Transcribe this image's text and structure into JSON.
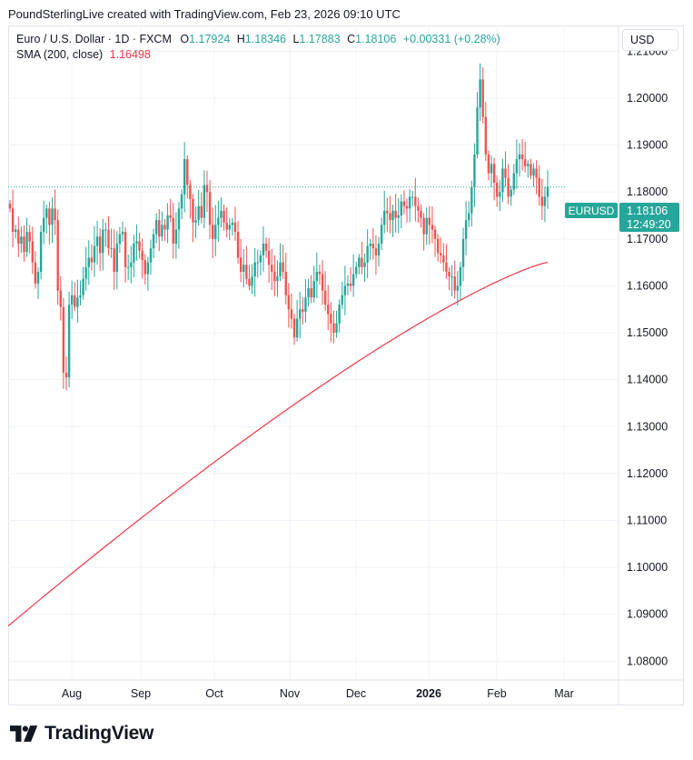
{
  "header": {
    "attribution": "PoundSterlingLive created with TradingView.com, Feb 23, 2026 09:10 UTC"
  },
  "legend": {
    "symbol": "Euro / U.S. Dollar · 1D · FXCM",
    "o_label": "O",
    "o_value": "1.17924",
    "h_label": "H",
    "h_value": "1.18346",
    "l_label": "L",
    "l_value": "1.17883",
    "c_label": "C",
    "c_value": "1.18106",
    "change": "+0.00331 (+0.28%)",
    "sma_label": "SMA (200, close)",
    "sma_value": "1.16498"
  },
  "currency_button": "USD",
  "price_tag": {
    "symbol": "EURUSD",
    "price": "1.18106",
    "countdown": "12:49:20"
  },
  "brand": {
    "name": "TradingView"
  },
  "colors": {
    "up": "#26a69a",
    "down": "#ef5350",
    "sma": "#f23645",
    "grid": "#f0f3fa",
    "tag": "#26a69a"
  },
  "chart_data": {
    "type": "candlestick",
    "y_ticks": [
      "1.21000",
      "1.20000",
      "1.19000",
      "1.18000",
      "1.17000",
      "1.16000",
      "1.15000",
      "1.14000",
      "1.13000",
      "1.12000",
      "1.11000",
      "1.10000",
      "1.09000",
      "1.08000"
    ],
    "ylim": [
      1.076,
      1.2155
    ],
    "x_ticks": [
      {
        "label": "Aug",
        "bold": false
      },
      {
        "label": "Sep",
        "bold": false
      },
      {
        "label": "Oct",
        "bold": false
      },
      {
        "label": "Nov",
        "bold": false
      },
      {
        "label": "Dec",
        "bold": false
      },
      {
        "label": "2026",
        "bold": true
      },
      {
        "label": "Feb",
        "bold": false
      },
      {
        "label": "Mar",
        "bold": false
      }
    ],
    "last_price": 1.18106,
    "grid": true,
    "series": [
      {
        "name": "EURUSD",
        "approx_daily_closes": [
          1.1765,
          1.1715,
          1.172,
          1.169,
          1.1705,
          1.1672,
          1.1715,
          1.1695,
          1.165,
          1.1605,
          1.163,
          1.1715,
          1.1745,
          1.1765,
          1.173,
          1.1765,
          1.174,
          1.159,
          1.1555,
          1.1415,
          1.1405,
          1.156,
          1.158,
          1.1555,
          1.1575,
          1.158,
          1.1615,
          1.164,
          1.166,
          1.165,
          1.1685,
          1.1705,
          1.167,
          1.172,
          1.172,
          1.168,
          1.168,
          1.163,
          1.169,
          1.171,
          1.1715,
          1.164,
          1.164,
          1.165,
          1.169,
          1.1695,
          1.1675,
          1.1655,
          1.1625,
          1.165,
          1.168,
          1.171,
          1.174,
          1.1705,
          1.173,
          1.172,
          1.175,
          1.1745,
          1.169,
          1.172,
          1.1765,
          1.1795,
          1.187,
          1.1815,
          1.1785,
          1.1735,
          1.174,
          1.177,
          1.1745,
          1.1815,
          1.18,
          1.173,
          1.17,
          1.173,
          1.1745,
          1.176,
          1.1735,
          1.172,
          1.173,
          1.1735,
          1.1715,
          1.166,
          1.163,
          1.1645,
          1.1615,
          1.16,
          1.162,
          1.165,
          1.165,
          1.1665,
          1.169,
          1.1675,
          1.1645,
          1.163,
          1.161,
          1.162,
          1.165,
          1.163,
          1.158,
          1.155,
          1.153,
          1.149,
          1.153,
          1.155,
          1.1545,
          1.1575,
          1.1595,
          1.1575,
          1.161,
          1.163,
          1.1625,
          1.159,
          1.156,
          1.154,
          1.152,
          1.15,
          1.152,
          1.156,
          1.158,
          1.16,
          1.1605,
          1.16,
          1.1625,
          1.164,
          1.166,
          1.164,
          1.165,
          1.1685,
          1.169,
          1.168,
          1.1665,
          1.169,
          1.173,
          1.176,
          1.1755,
          1.174,
          1.176,
          1.1745,
          1.175,
          1.178,
          1.177,
          1.1765,
          1.179,
          1.179,
          1.177,
          1.176,
          1.1745,
          1.171,
          1.1745,
          1.173,
          1.172,
          1.17,
          1.167,
          1.1665,
          1.165,
          1.163,
          1.162,
          1.162,
          1.159,
          1.16,
          1.164,
          1.17,
          1.174,
          1.1755,
          1.181,
          1.188,
          1.198,
          1.204,
          1.196,
          1.188,
          1.184,
          1.186,
          1.182,
          1.179,
          1.18,
          1.185,
          1.183,
          1.179,
          1.1805,
          1.184,
          1.187,
          1.188,
          1.187,
          1.1855,
          1.186,
          1.1835,
          1.185,
          1.183,
          1.179,
          1.177,
          1.179,
          1.181
        ]
      },
      {
        "name": "SMA (200, close)",
        "approx_endpoints": [
          1.0875,
          1.165
        ]
      }
    ]
  }
}
